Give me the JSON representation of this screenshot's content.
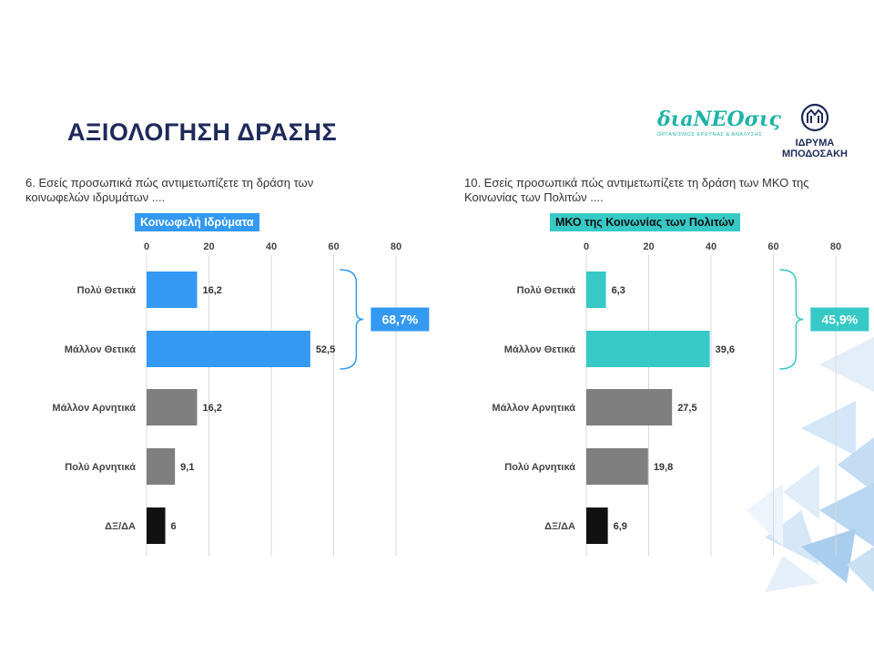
{
  "page": {
    "title": "ΑΞΙΟΛΟΓΗΣΗ ΔΡΑΣΗΣ",
    "logo_left_name": "διaNEOσις",
    "logo_left_sub": "ΟΡΓΑΝΙΣΜΟΣ ΕΡΕΥΝΑΣ & ΑΝΑΛΥΣΗΣ",
    "logo_right_line1": "ΙΔΡΥΜΑ",
    "logo_right_line2": "ΜΠΟΔΟΣΑΚΗ"
  },
  "chart_data": [
    {
      "type": "bar",
      "orientation": "horizontal",
      "question_line1": "6. Εσείς προσωπικά πώς αντιμετωπίζετε τη δράση των",
      "question_line2": "κοινωφελών ιδρυμάτων ....",
      "title": "Κοινωφελή Ιδρύματα",
      "categories": [
        "Πολύ Θετικά",
        "Μάλλον Θετικά",
        "Μάλλον Αρνητικά",
        "Πολύ Αρνητικά",
        "ΔΞ/ΔΑ"
      ],
      "values": [
        16.2,
        52.5,
        16.2,
        9.1,
        6
      ],
      "value_labels": [
        "16,2",
        "52,5",
        "16,2",
        "9,1",
        "6"
      ],
      "bar_colors": [
        "#3399f3",
        "#3399f3",
        "#7f7f7f",
        "#7f7f7f",
        "#111111"
      ],
      "xlim": [
        0,
        80
      ],
      "xticks": [
        "0",
        "20",
        "40",
        "60",
        "80"
      ],
      "grid": true,
      "bracket_total": "68,7%",
      "accent": "#3399f3"
    },
    {
      "type": "bar",
      "orientation": "horizontal",
      "question_line1": "10. Εσείς προσωπικά πώς αντιμετωπίζετε τη δράση των ΜΚΟ της",
      "question_line2": "Κοινωνίας των Πολιτών ....",
      "title": "ΜΚΟ της Κοινωνίας των Πολιτών",
      "categories": [
        "Πολύ Θετικά",
        "Μάλλον Θετικά",
        "Μάλλον Αρνητικά",
        "Πολύ Αρνητικά",
        "ΔΞ/ΔΑ"
      ],
      "values": [
        6.3,
        39.6,
        27.5,
        19.8,
        6.9
      ],
      "value_labels": [
        "6,3",
        "39,6",
        "27,5",
        "19,8",
        "6,9"
      ],
      "bar_colors": [
        "#36c9c6",
        "#36c9c6",
        "#7f7f7f",
        "#7f7f7f",
        "#111111"
      ],
      "xlim": [
        0,
        80
      ],
      "xticks": [
        "0",
        "20",
        "40",
        "60",
        "80"
      ],
      "grid": true,
      "bracket_total": "45,9%",
      "accent": "#36c9c6"
    }
  ]
}
